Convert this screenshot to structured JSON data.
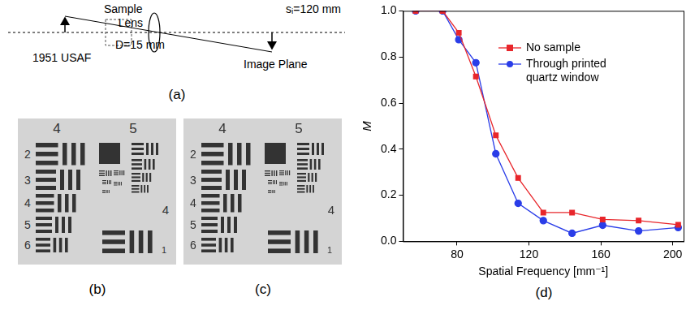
{
  "diagram": {
    "label": "(a)",
    "object": "1951 USAF",
    "sample": "Sample",
    "lens": "Lens",
    "aperture": "D=15 mm",
    "image_distance": "sᵢ=120 mm",
    "image": "Image Plane"
  },
  "images": {
    "panels": [
      "(b)",
      "(c)"
    ],
    "group_labels": [
      "4",
      "5"
    ],
    "element_labels": [
      "2",
      "3",
      "4",
      "5",
      "6"
    ],
    "side_group_label": "4",
    "side_element_label": "1"
  },
  "chart_data": {
    "type": "line",
    "panel_label": "(d)",
    "x_label": "Spatial Frequency [mm⁻¹]",
    "y_label": "M",
    "xlim": [
      50,
      206
    ],
    "xticks": [
      80,
      120,
      160,
      200
    ],
    "ylim": [
      0,
      1
    ],
    "yticks": [
      {
        "value": 0,
        "label": "0.0"
      },
      {
        "value": 0.2,
        "label": "0.2"
      },
      {
        "value": 0.4,
        "label": "0.4"
      },
      {
        "value": 0.6,
        "label": "0.6"
      },
      {
        "value": 0.8,
        "label": "0.8"
      },
      {
        "value": 1,
        "label": "1.0"
      }
    ],
    "grid": false,
    "legend": "upper right",
    "x": [
      57,
      72,
      81,
      90.5,
      101.6,
      114,
      128,
      144,
      161,
      181,
      203
    ],
    "series": [
      {
        "name": "No sample",
        "color": "#e8262b",
        "marker": "square",
        "values": [
          1.0,
          1.0,
          0.905,
          0.715,
          0.46,
          0.275,
          0.125,
          0.125,
          0.095,
          0.09,
          0.072
        ]
      },
      {
        "name": "Through printed quartz window",
        "color": "#2a3de8",
        "marker": "circle",
        "values": [
          1.0,
          1.0,
          0.875,
          0.775,
          0.38,
          0.165,
          0.09,
          0.035,
          0.07,
          0.045,
          0.06
        ]
      }
    ]
  }
}
